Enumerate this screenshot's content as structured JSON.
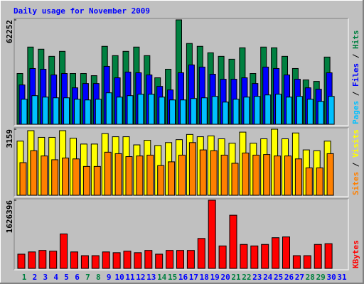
{
  "chart_data": [
    {
      "type": "bar",
      "title": "Daily usage for November 2009",
      "legend_separator": " / ",
      "ylim": [
        0,
        62252
      ],
      "yticks": [
        62252
      ],
      "series": [
        {
          "name": "Hits",
          "color": "#008040",
          "values": [
            30270,
            46050,
            44770,
            40510,
            43490,
            30270,
            30270,
            28990,
            46480,
            40930,
            43490,
            46050,
            40930,
            27710,
            32830,
            62252,
            48180,
            46480,
            42640,
            40510,
            38800,
            45620,
            30270,
            46050,
            45620,
            40510,
            33260,
            26440,
            25580,
            40080,
            null
          ]
        },
        {
          "name": "Files",
          "color": "#0000FF",
          "values": [
            23450,
            33260,
            32830,
            29420,
            30270,
            21740,
            24300,
            24300,
            34540,
            27710,
            31130,
            30700,
            29420,
            22600,
            20470,
            30700,
            35390,
            34110,
            29850,
            26860,
            26860,
            27710,
            24300,
            34110,
            33260,
            29420,
            26860,
            21740,
            20890,
            30700,
            null
          ]
        },
        {
          "name": "Pages",
          "color": "#00C0FF",
          "values": [
            14920,
            17060,
            16200,
            15780,
            15780,
            14920,
            14500,
            14920,
            18760,
            16200,
            17060,
            17910,
            17910,
            16200,
            14500,
            14500,
            15350,
            15780,
            16630,
            13220,
            14920,
            16200,
            16630,
            17480,
            17910,
            16200,
            16630,
            14920,
            13640,
            16630,
            null
          ]
        }
      ]
    },
    {
      "type": "bar",
      "legend_separator": " / ",
      "ylim": [
        0,
        3159
      ],
      "yticks": [
        3159
      ],
      "series": [
        {
          "name": "Visits",
          "color": "#FFFF00",
          "values": [
            2590,
            3090,
            2770,
            2770,
            3090,
            2730,
            2450,
            2450,
            2950,
            2800,
            2800,
            2410,
            2630,
            2380,
            2520,
            2660,
            2910,
            2800,
            2840,
            2700,
            2490,
            3020,
            2490,
            2700,
            3159,
            2700,
            2980,
            2170,
            2130,
            2590,
            null
          ]
        },
        {
          "name": "Sites",
          "color": "#FF8000",
          "values": [
            1560,
            2130,
            1880,
            1700,
            1780,
            1740,
            1380,
            1380,
            2060,
            1990,
            1850,
            1880,
            1920,
            1420,
            1600,
            1920,
            2520,
            2170,
            2130,
            1920,
            1530,
            2020,
            1920,
            1950,
            1880,
            1880,
            1740,
            1310,
            1310,
            1990,
            null
          ]
        }
      ]
    },
    {
      "type": "bar",
      "ylim": [
        0,
        1626396
      ],
      "yticks": [
        1626396
      ],
      "categories": [
        "1",
        "2",
        "3",
        "4",
        "5",
        "6",
        "7",
        "8",
        "9",
        "10",
        "11",
        "12",
        "13",
        "14",
        "15",
        "16",
        "17",
        "18",
        "19",
        "20",
        "21",
        "22",
        "23",
        "24",
        "25",
        "26",
        "27",
        "28",
        "29",
        "30",
        "31"
      ],
      "label_colors": [
        "#008040",
        "#0000FF",
        "#0000FF",
        "#0000FF",
        "#0000FF",
        "#0000FF",
        "#008040",
        "#008040",
        "#0000FF",
        "#0000FF",
        "#0000FF",
        "#0000FF",
        "#0000FF",
        "#008040",
        "#008040",
        "#0000FF",
        "#0000FF",
        "#0000FF",
        "#0000FF",
        "#0000FF",
        "#008040",
        "#008040",
        "#0000FF",
        "#0000FF",
        "#0000FF",
        "#0000FF",
        "#0000FF",
        "#008040",
        "#008040",
        "#0000FF",
        "#0000FF"
      ],
      "series": [
        {
          "name": "KBytes",
          "color": "#FF0000",
          "values": [
            339600,
            393200,
            428900,
            411100,
            822100,
            393200,
            303800,
            303800,
            393200,
            375300,
            411100,
            375300,
            428900,
            339600,
            428900,
            428900,
            428900,
            714900,
            1626396,
            536200,
            1268900,
            571900,
            536200,
            571900,
            732800,
            750600,
            303800,
            303800,
            571900,
            589800,
            null
          ]
        }
      ]
    }
  ]
}
